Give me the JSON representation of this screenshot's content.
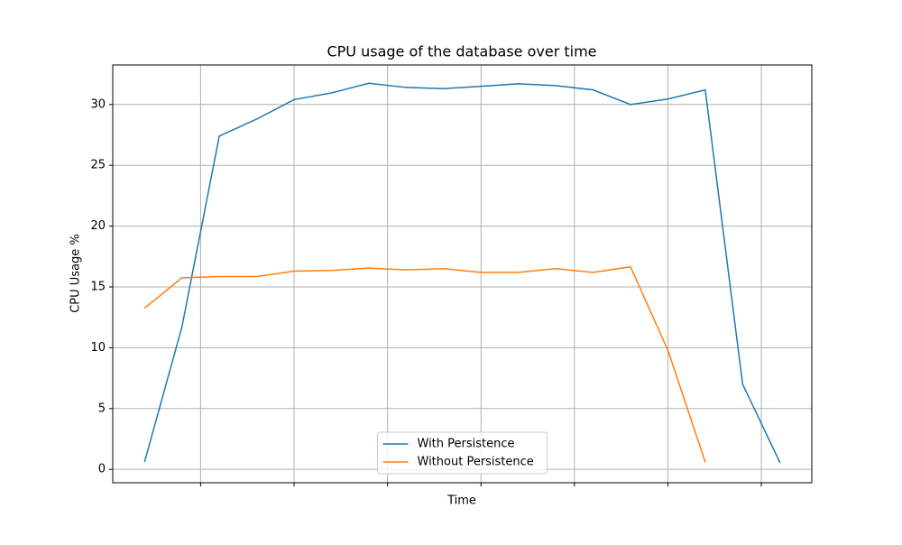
{
  "chart_data": {
    "type": "line",
    "title": "CPU usage of the database over time",
    "x_label": "Time",
    "y_label": "CPU Usage %",
    "x": [
      0,
      1,
      2,
      3,
      4,
      5,
      6,
      7,
      8,
      9,
      10,
      11,
      12,
      13,
      14,
      15,
      16,
      17
    ],
    "series": [
      {
        "name": "With Persistence",
        "color": "#1f77b4",
        "values": [
          0.6,
          11.7,
          27.4,
          28.8,
          30.4,
          30.95,
          31.75,
          31.4,
          31.3,
          31.5,
          31.7,
          31.55,
          31.2,
          30.0,
          30.45,
          31.2,
          7.0,
          0.55
        ]
      },
      {
        "name": "Without Persistence",
        "color": "#ff7f0e",
        "values": [
          13.25,
          15.75,
          15.85,
          15.85,
          16.3,
          16.35,
          16.55,
          16.4,
          16.5,
          16.2,
          16.2,
          16.5,
          16.2,
          16.65,
          9.8,
          0.6,
          null,
          null
        ]
      }
    ],
    "xlim": [
      -0.85,
      17.85
    ],
    "xticks": [
      1.5,
      4,
      6.5,
      9,
      11.5,
      14,
      16.5
    ],
    "ylim": [
      -1.1,
      33.25
    ],
    "yticks": [
      0,
      5,
      10,
      15,
      20,
      25,
      30
    ],
    "grid": true,
    "legend": "lower center"
  }
}
